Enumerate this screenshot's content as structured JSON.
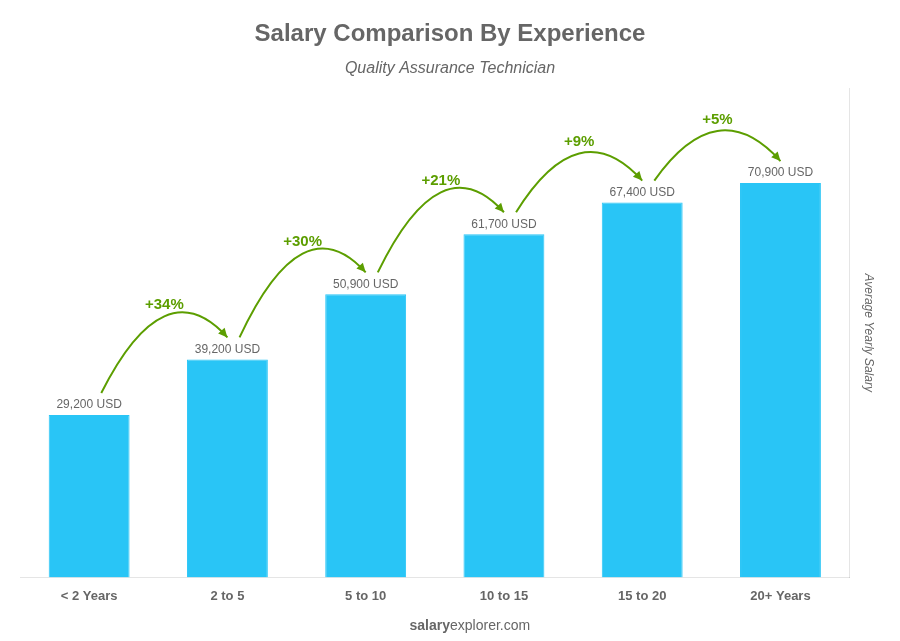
{
  "chart_data": {
    "type": "bar",
    "title": "Salary Comparison By Experience",
    "subtitle": "Quality Assurance Technician",
    "ylabel": "Average Yearly Salary",
    "categories": [
      "< 2 Years",
      "2 to 5",
      "5 to 10",
      "10 to 15",
      "15 to 20",
      "20+ Years"
    ],
    "values": [
      29200,
      39200,
      50900,
      61700,
      67400,
      70900
    ],
    "value_labels": [
      "29,200 USD",
      "39,200 USD",
      "50,900 USD",
      "61,700 USD",
      "67,400 USD",
      "70,900 USD"
    ],
    "data_labels": true,
    "color": "#29c5f6",
    "ylim": [
      0,
      88000
    ],
    "tick_labels": "x",
    "grid": false,
    "annotations": [
      "+34%",
      "+30%",
      "+21%",
      "+9%",
      "+5%"
    ],
    "footer": [
      "salary",
      "explorer.com"
    ]
  }
}
